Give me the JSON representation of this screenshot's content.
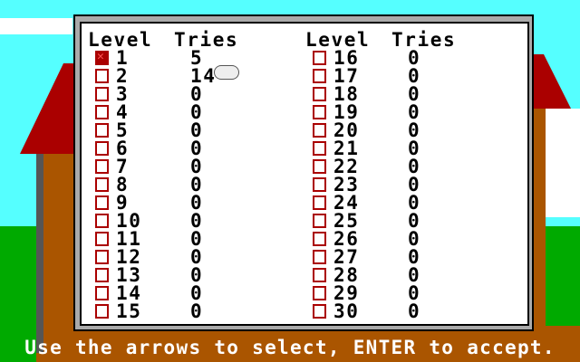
{
  "headers": {
    "level": "Level",
    "tries": "Tries"
  },
  "levels": [
    {
      "level": "1",
      "tries": "5",
      "checked": true
    },
    {
      "level": "2",
      "tries": "14",
      "checked": false
    },
    {
      "level": "3",
      "tries": "0",
      "checked": false
    },
    {
      "level": "4",
      "tries": "0",
      "checked": false
    },
    {
      "level": "5",
      "tries": "0",
      "checked": false
    },
    {
      "level": "6",
      "tries": "0",
      "checked": false
    },
    {
      "level": "7",
      "tries": "0",
      "checked": false
    },
    {
      "level": "8",
      "tries": "0",
      "checked": false
    },
    {
      "level": "9",
      "tries": "0",
      "checked": false
    },
    {
      "level": "10",
      "tries": "0",
      "checked": false
    },
    {
      "level": "11",
      "tries": "0",
      "checked": false
    },
    {
      "level": "12",
      "tries": "0",
      "checked": false
    },
    {
      "level": "13",
      "tries": "0",
      "checked": false
    },
    {
      "level": "14",
      "tries": "0",
      "checked": false
    },
    {
      "level": "15",
      "tries": "0",
      "checked": false
    },
    {
      "level": "16",
      "tries": "0",
      "checked": false
    },
    {
      "level": "17",
      "tries": "0",
      "checked": false
    },
    {
      "level": "18",
      "tries": "0",
      "checked": false
    },
    {
      "level": "19",
      "tries": "0",
      "checked": false
    },
    {
      "level": "20",
      "tries": "0",
      "checked": false
    },
    {
      "level": "21",
      "tries": "0",
      "checked": false
    },
    {
      "level": "22",
      "tries": "0",
      "checked": false
    },
    {
      "level": "23",
      "tries": "0",
      "checked": false
    },
    {
      "level": "24",
      "tries": "0",
      "checked": false
    },
    {
      "level": "25",
      "tries": "0",
      "checked": false
    },
    {
      "level": "26",
      "tries": "0",
      "checked": false
    },
    {
      "level": "27",
      "tries": "0",
      "checked": false
    },
    {
      "level": "28",
      "tries": "0",
      "checked": false
    },
    {
      "level": "29",
      "tries": "0",
      "checked": false
    },
    {
      "level": "30",
      "tries": "0",
      "checked": false
    }
  ],
  "hint": "Use the arrows to select, ENTER to accept.",
  "colors": {
    "sky": "#55ffff",
    "grass": "#00aa00",
    "checkbox": "#aa0000",
    "panel": "#ffffff"
  }
}
